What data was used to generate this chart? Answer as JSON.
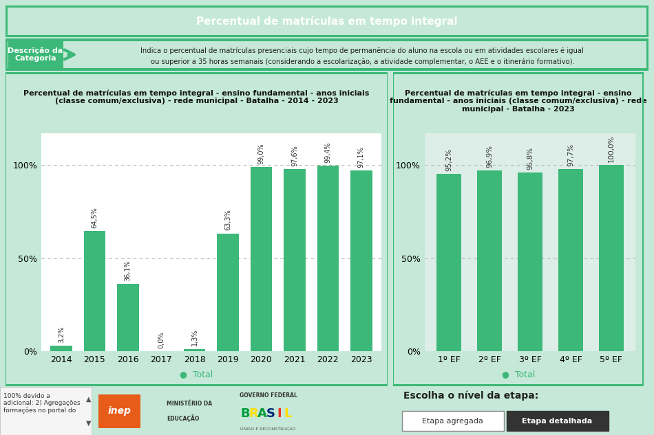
{
  "main_title": "Percentual de matrículas em tempo integral",
  "main_title_bg": "#2b2b2b",
  "main_title_color": "#ffffff",
  "description_label": "Descrição da\nCategoria",
  "description_text_line1": "Indica o percentual de matrículas presenciais cujo tempo de permanência do aluno na escola ou em atividades escolares é igual",
  "description_text_line2": "ou superior a 35 horas semanais (considerando a escolarização, a atividade complementar, o AEE e o itinerário formativo).",
  "left_chart_title": "Percentual de matrículas em tempo integral - ensino fundamental - anos iniciais\n(classe comum/exclusiva) - rede municipal - Batalha - 2014 - 2023",
  "right_chart_title": "Percentual de matrículas em tempo integral - ensino\nfundamental - anos iniciais (classe comum/exclusiva) - rede\nmunicipal - Batalha - 2023",
  "left_years": [
    "2014",
    "2015",
    "2016",
    "2017",
    "2018",
    "2019",
    "2020",
    "2021",
    "2022",
    "2023"
  ],
  "left_values": [
    3.2,
    64.5,
    36.1,
    0.0,
    1.3,
    63.3,
    99.0,
    97.6,
    99.4,
    97.1
  ],
  "left_labels": [
    "3,2%",
    "64,5%",
    "36,1%",
    "0,0%",
    "1,3%",
    "63,3%",
    "99,0%",
    "97,6%",
    "99,4%",
    "97,1%"
  ],
  "right_categories": [
    "1º EF",
    "2º EF",
    "3º EF",
    "4º EF",
    "5º EF"
  ],
  "right_values": [
    95.2,
    96.9,
    95.8,
    97.7,
    100.0
  ],
  "right_labels": [
    "95,2%",
    "96,9%",
    "95,8%",
    "97,7%",
    "100,0%"
  ],
  "bar_color": "#3cb878",
  "border_color": "#3cb878",
  "grid_color": "#bbbbbb",
  "legend_label": "Total",
  "outer_bg": "#c5e8d8",
  "left_chart_bg": "#ffffff",
  "right_chart_bg": "#ddeee8",
  "desc_bg": "#eaf5ef",
  "footer_bg": "#e8e8e8",
  "footer_left_text": "100% devido a\nadicional: 2) Agregações\nformações no portal do",
  "footer_choose_text": "Escolha o nível da etapa:",
  "btn1_text": "Etapa agregada",
  "btn2_text": "Etapa detalhada"
}
